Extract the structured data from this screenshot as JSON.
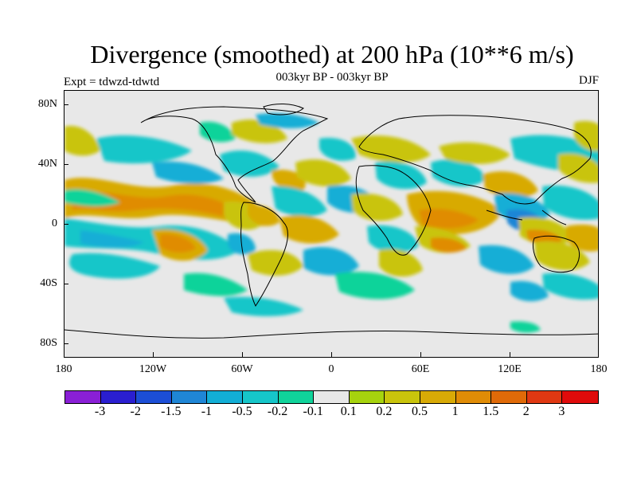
{
  "title": "Divergence (smoothed) at 200 hPa (10**6 m/s)",
  "subtitle": "003kyr BP - 003kyr BP",
  "left_label": "Expt = tdwzd-tdwtd",
  "right_label": "DJF",
  "y_ticks": [
    "80N",
    "40N",
    "0",
    "40S",
    "80S"
  ],
  "x_ticks": [
    "180",
    "120W",
    "60W",
    "0",
    "60E",
    "120E",
    "180"
  ],
  "colorbar": {
    "colors": [
      "#8a1fd6",
      "#2a1ed0",
      "#1c4ed6",
      "#1f86d6",
      "#12aed6",
      "#16c6c9",
      "#10d39a",
      "#e8e8e8",
      "#a6d30e",
      "#c9c40c",
      "#d8aa06",
      "#e08c06",
      "#e06a08",
      "#e03812",
      "#e00b0b"
    ],
    "labels": [
      "-3",
      "-2",
      "-1.5",
      "-1",
      "-0.5",
      "-0.2",
      "-0.1",
      "0.1",
      "0.2",
      "0.5",
      "1",
      "1.5",
      "2",
      "3"
    ]
  }
}
